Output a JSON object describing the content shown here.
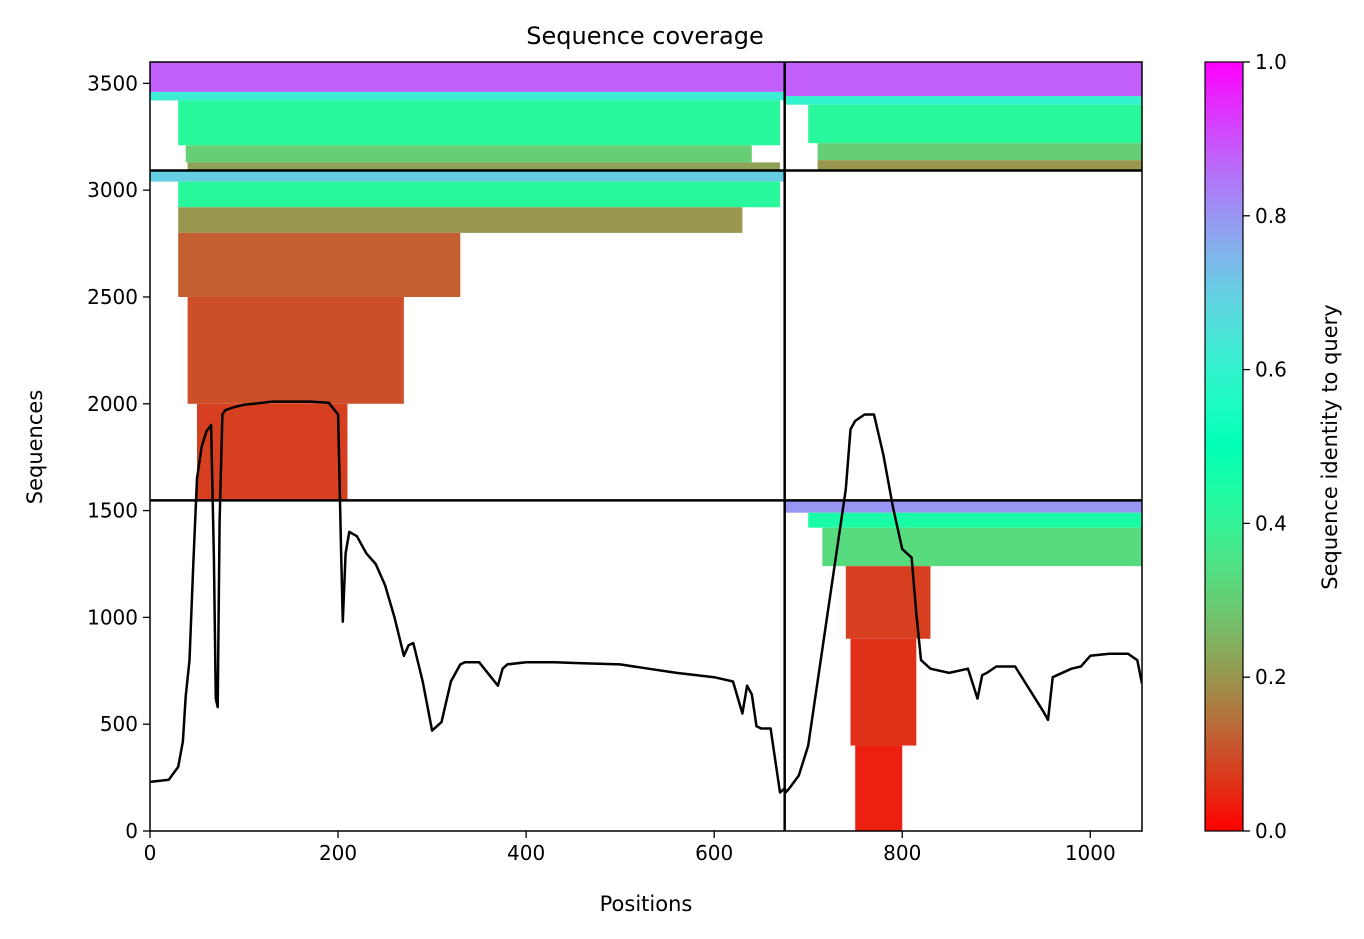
{
  "chart_data": {
    "type": "heatmap",
    "title": "Sequence coverage",
    "xlabel": "Positions",
    "ylabel": "Sequences",
    "xlim": [
      0,
      1055
    ],
    "ylim": [
      0,
      3600
    ],
    "x_ticks": [
      0,
      200,
      400,
      600,
      800,
      1000
    ],
    "y_ticks": [
      0,
      500,
      1000,
      1500,
      2000,
      2500,
      3000,
      3500
    ],
    "grid": false,
    "colorbar": {
      "label": "Sequence identity to query",
      "range": [
        0,
        1
      ],
      "ticks": [
        "0.0",
        "0.2",
        "0.4",
        "0.6",
        "0.8",
        "1.0"
      ],
      "colormap": "rainbow_r"
    },
    "chain_boundary_x": [
      675
    ],
    "chain_boundary_y": [
      1548,
      3092
    ],
    "msa_blocks": [
      {
        "x_range": [
          0,
          675
        ],
        "y_range": [
          3092,
          3600
        ],
        "bands": [
          {
            "y": [
              3460,
              3600
            ],
            "identity": 0.88,
            "x": [
              0,
              675
            ]
          },
          {
            "y": [
              3420,
              3460
            ],
            "identity": 0.62,
            "x": [
              0,
              675
            ]
          },
          {
            "y": [
              3210,
              3420
            ],
            "identity": 0.42,
            "x": [
              30,
              670
            ]
          },
          {
            "y": [
              3130,
              3210
            ],
            "identity": 0.3,
            "x": [
              38,
              640
            ]
          },
          {
            "y": [
              3092,
              3130
            ],
            "identity": 0.22,
            "x": [
              40,
              670
            ]
          }
        ]
      },
      {
        "x_range": [
          675,
          1055
        ],
        "y_range": [
          3092,
          3600
        ],
        "bands": [
          {
            "y": [
              3440,
              3600
            ],
            "identity": 0.88,
            "x": [
              675,
              1055
            ]
          },
          {
            "y": [
              3400,
              3440
            ],
            "identity": 0.6,
            "x": [
              675,
              1055
            ]
          },
          {
            "y": [
              3220,
              3400
            ],
            "identity": 0.42,
            "x": [
              700,
              1055
            ]
          },
          {
            "y": [
              3140,
              3220
            ],
            "identity": 0.3,
            "x": [
              710,
              1055
            ]
          },
          {
            "y": [
              3092,
              3140
            ],
            "identity": 0.2,
            "x": [
              710,
              1055
            ]
          }
        ]
      },
      {
        "x_range": [
          0,
          675
        ],
        "y_range": [
          1548,
          3092
        ],
        "bands": [
          {
            "y": [
              3040,
              3092
            ],
            "identity": 0.7,
            "x": [
              0,
              675
            ]
          },
          {
            "y": [
              2920,
              3040
            ],
            "identity": 0.42,
            "x": [
              30,
              670
            ]
          },
          {
            "y": [
              2800,
              2920
            ],
            "identity": 0.2,
            "x": [
              30,
              630
            ]
          },
          {
            "y": [
              2500,
              2800
            ],
            "identity": 0.12,
            "x": [
              30,
              330
            ]
          },
          {
            "y": [
              2000,
              2500
            ],
            "identity": 0.1,
            "x": [
              40,
              270
            ]
          },
          {
            "y": [
              1548,
              2000
            ],
            "identity": 0.08,
            "x": [
              50,
              210
            ]
          }
        ]
      },
      {
        "x_range": [
          675,
          1055
        ],
        "y_range": [
          0,
          1548
        ],
        "bands": [
          {
            "y": [
              1490,
              1548
            ],
            "identity": 0.8,
            "x": [
              675,
              1055
            ]
          },
          {
            "y": [
              1420,
              1490
            ],
            "identity": 0.45,
            "x": [
              700,
              1055
            ]
          },
          {
            "y": [
              1240,
              1420
            ],
            "identity": 0.33,
            "x": [
              715,
              1055
            ]
          },
          {
            "y": [
              900,
              1240
            ],
            "identity": 0.08,
            "x": [
              740,
              830
            ]
          },
          {
            "y": [
              400,
              900
            ],
            "identity": 0.06,
            "x": [
              745,
              815
            ]
          },
          {
            "y": [
              0,
              400
            ],
            "identity": 0.04,
            "x": [
              750,
              800
            ]
          }
        ]
      }
    ],
    "coverage_line": {
      "name": "",
      "x": [
        0,
        20,
        30,
        35,
        38,
        42,
        46,
        50,
        55,
        60,
        65,
        68,
        70,
        72,
        74,
        77,
        80,
        90,
        100,
        110,
        120,
        130,
        150,
        170,
        190,
        200,
        203,
        205,
        208,
        212,
        220,
        230,
        240,
        250,
        260,
        270,
        275,
        280,
        290,
        300,
        305,
        310,
        320,
        330,
        335,
        350,
        370,
        375,
        380,
        400,
        430,
        460,
        500,
        530,
        560,
        600,
        620,
        630,
        635,
        640,
        645,
        650,
        655,
        660,
        670,
        675,
        676,
        680,
        690,
        700,
        710,
        720,
        730,
        740,
        745,
        750,
        760,
        770,
        780,
        790,
        800,
        805,
        810,
        815,
        820,
        830,
        850,
        870,
        880,
        885,
        890,
        900,
        920,
        950,
        955,
        960,
        980,
        990,
        1000,
        1020,
        1040,
        1050,
        1055
      ],
      "y": [
        230,
        240,
        300,
        420,
        630,
        800,
        1250,
        1650,
        1800,
        1870,
        1900,
        1280,
        620,
        580,
        1450,
        1950,
        1970,
        1985,
        1995,
        2000,
        2005,
        2010,
        2010,
        2010,
        2005,
        1950,
        1350,
        980,
        1300,
        1400,
        1380,
        1300,
        1250,
        1150,
        1000,
        820,
        870,
        880,
        700,
        470,
        490,
        510,
        700,
        780,
        790,
        790,
        680,
        760,
        780,
        790,
        790,
        785,
        780,
        760,
        740,
        720,
        700,
        550,
        680,
        640,
        490,
        480,
        480,
        480,
        180,
        200,
        180,
        200,
        260,
        400,
        700,
        1000,
        1300,
        1600,
        1880,
        1920,
        1950,
        1950,
        1760,
        1520,
        1320,
        1300,
        1280,
        1020,
        800,
        760,
        740,
        760,
        620,
        730,
        740,
        770,
        770,
        560,
        520,
        720,
        760,
        770,
        820,
        830,
        830,
        800,
        690
      ]
    }
  }
}
